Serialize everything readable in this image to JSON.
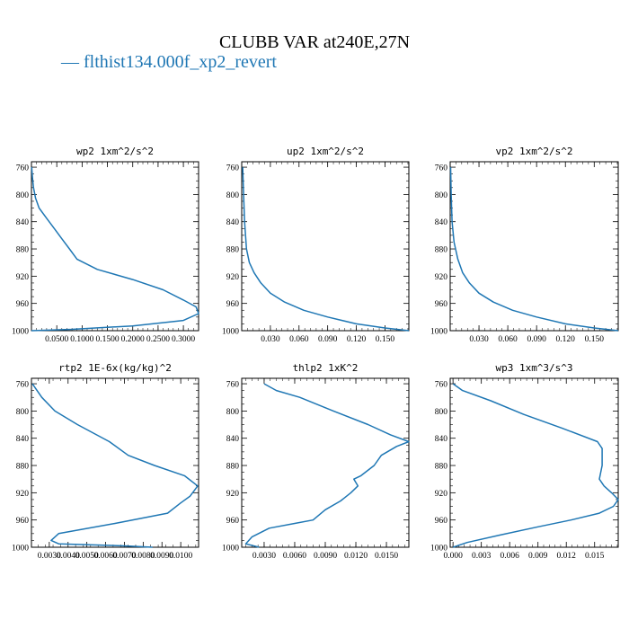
{
  "figure": {
    "title": "CLUBB VAR at240E,27N",
    "legend": {
      "label": "— flthist134.000f_xp2_revert",
      "color": "#1f77b4"
    }
  },
  "chart_data": [
    {
      "type": "line",
      "title": "wp2  1xm^2/s^2",
      "xlim": [
        0,
        0.33
      ],
      "ylim": [
        1000,
        752
      ],
      "xticks": [
        0.05,
        0.1,
        0.15,
        0.2,
        0.25,
        0.3
      ],
      "xtick_labels": [
        "0.0500",
        "0.1000",
        "0.1500",
        "0.2000",
        "0.2500",
        "0.3000"
      ],
      "yticks": [
        760,
        800,
        840,
        880,
        920,
        960,
        1000
      ],
      "ytick_labels": [
        "760",
        "800",
        "840",
        "880",
        "920",
        "960",
        "1000"
      ],
      "series": [
        {
          "points": [
            [
              0.0005,
              760
            ],
            [
              0.002,
              775
            ],
            [
              0.004,
              790
            ],
            [
              0.008,
              805
            ],
            [
              0.015,
              820
            ],
            [
              0.03,
              835
            ],
            [
              0.045,
              850
            ],
            [
              0.06,
              865
            ],
            [
              0.075,
              880
            ],
            [
              0.09,
              895
            ],
            [
              0.13,
              910
            ],
            [
              0.2,
              925
            ],
            [
              0.26,
              940
            ],
            [
              0.3,
              955
            ],
            [
              0.325,
              965
            ],
            [
              0.33,
              975
            ],
            [
              0.3,
              985
            ],
            [
              0.2,
              993
            ],
            [
              0.08,
              998
            ],
            [
              0.0,
              1000
            ]
          ]
        }
      ]
    },
    {
      "type": "line",
      "title": "up2  1xm^2/s^2",
      "xlim": [
        0,
        0.175
      ],
      "ylim": [
        1000,
        752
      ],
      "xticks": [
        0.03,
        0.06,
        0.09,
        0.12,
        0.15
      ],
      "xtick_labels": [
        "0.030",
        "0.060",
        "0.090",
        "0.120",
        "0.150"
      ],
      "yticks": [
        760,
        800,
        840,
        880,
        920,
        960,
        1000
      ],
      "ytick_labels": [
        "760",
        "800",
        "840",
        "880",
        "920",
        "960",
        "1000"
      ],
      "series": [
        {
          "points": [
            [
              0.001,
              760
            ],
            [
              0.002,
              800
            ],
            [
              0.003,
              840
            ],
            [
              0.005,
              880
            ],
            [
              0.008,
              900
            ],
            [
              0.013,
              915
            ],
            [
              0.02,
              930
            ],
            [
              0.03,
              945
            ],
            [
              0.045,
              958
            ],
            [
              0.065,
              970
            ],
            [
              0.09,
              980
            ],
            [
              0.12,
              990
            ],
            [
              0.15,
              996
            ],
            [
              0.175,
              1000
            ]
          ]
        }
      ]
    },
    {
      "type": "line",
      "title": "vp2  1xm^2/s^2",
      "xlim": [
        0,
        0.175
      ],
      "ylim": [
        1000,
        752
      ],
      "xticks": [
        0.03,
        0.06,
        0.09,
        0.12,
        0.15
      ],
      "xtick_labels": [
        "0.030",
        "0.060",
        "0.090",
        "0.120",
        "0.150"
      ],
      "yticks": [
        760,
        800,
        840,
        880,
        920,
        960,
        1000
      ],
      "ytick_labels": [
        "760",
        "800",
        "840",
        "880",
        "920",
        "960",
        "1000"
      ],
      "series": [
        {
          "points": [
            [
              0.0005,
              760
            ],
            [
              0.001,
              800
            ],
            [
              0.002,
              840
            ],
            [
              0.004,
              870
            ],
            [
              0.008,
              895
            ],
            [
              0.013,
              915
            ],
            [
              0.02,
              930
            ],
            [
              0.03,
              945
            ],
            [
              0.045,
              958
            ],
            [
              0.065,
              970
            ],
            [
              0.09,
              980
            ],
            [
              0.12,
              990
            ],
            [
              0.15,
              996
            ],
            [
              0.175,
              1000
            ]
          ]
        }
      ]
    },
    {
      "type": "line",
      "title": "rtp2  1E-6x(kg/kg)^2",
      "xlim": [
        0.00205,
        0.01095
      ],
      "ylim": [
        1000,
        752
      ],
      "xticks": [
        0.004,
        0.006,
        0.008,
        0.01
      ],
      "xtick_labels": [
        "0.0040",
        "0.0060",
        "0.0080",
        "0.0100"
      ],
      "xticks_minor": [
        0.003,
        0.005,
        0.007,
        0.009
      ],
      "xtick_labels_minor": [
        "0.0030",
        "0.0050",
        "0.0070",
        "0.0090"
      ],
      "yticks": [
        760,
        800,
        840,
        880,
        920,
        960,
        1000
      ],
      "ytick_labels": [
        "760",
        "800",
        "840",
        "880",
        "920",
        "960",
        "1000"
      ],
      "series": [
        {
          "points": [
            [
              0.0021,
              760
            ],
            [
              0.0026,
              780
            ],
            [
              0.0033,
              800
            ],
            [
              0.0045,
              820
            ],
            [
              0.0062,
              845
            ],
            [
              0.0072,
              865
            ],
            [
              0.0086,
              880
            ],
            [
              0.0102,
              895
            ],
            [
              0.0109,
              910
            ],
            [
              0.0105,
              925
            ],
            [
              0.01,
              935
            ],
            [
              0.0093,
              950
            ],
            [
              0.0065,
              965
            ],
            [
              0.0035,
              980
            ],
            [
              0.0031,
              990
            ],
            [
              0.0035,
              995
            ],
            [
              0.007,
              998
            ],
            [
              0.0085,
              1000
            ]
          ]
        }
      ]
    },
    {
      "type": "line",
      "title": "thlp2  1xK^2",
      "xlim": [
        0.0008,
        0.0172
      ],
      "ylim": [
        1000,
        752
      ],
      "xticks": [
        0.003,
        0.006,
        0.009,
        0.012,
        0.015
      ],
      "xtick_labels": [
        "0.0030",
        "0.0060",
        "0.0090",
        "0.0120",
        "0.0150"
      ],
      "yticks": [
        760,
        800,
        840,
        880,
        920,
        960,
        1000
      ],
      "ytick_labels": [
        "760",
        "800",
        "840",
        "880",
        "920",
        "960",
        "1000"
      ],
      "series": [
        {
          "points": [
            [
              0.003,
              760
            ],
            [
              0.0042,
              770
            ],
            [
              0.0065,
              780
            ],
            [
              0.0098,
              800
            ],
            [
              0.0132,
              820
            ],
            [
              0.0154,
              835
            ],
            [
              0.0172,
              845
            ],
            [
              0.016,
              852
            ],
            [
              0.0145,
              865
            ],
            [
              0.0138,
              880
            ],
            [
              0.0125,
              895
            ],
            [
              0.0118,
              900
            ],
            [
              0.0122,
              910
            ],
            [
              0.0115,
              920
            ],
            [
              0.0105,
              932
            ],
            [
              0.009,
              945
            ],
            [
              0.0078,
              960
            ],
            [
              0.006,
              965
            ],
            [
              0.0035,
              972
            ],
            [
              0.0018,
              985
            ],
            [
              0.0012,
              995
            ],
            [
              0.0025,
              1000
            ]
          ]
        }
      ]
    },
    {
      "type": "line",
      "title": "wp3  1xm^3/s^3",
      "xlim": [
        -0.0003,
        0.0175
      ],
      "ylim": [
        1000,
        752
      ],
      "xticks": [
        0.0,
        0.003,
        0.006,
        0.009,
        0.012,
        0.015
      ],
      "xtick_labels": [
        "0.000",
        "0.003",
        "0.006",
        "0.009",
        "0.012",
        "0.015"
      ],
      "yticks": [
        760,
        800,
        840,
        880,
        920,
        960,
        1000
      ],
      "ytick_labels": [
        "760",
        "800",
        "840",
        "880",
        "920",
        "960",
        "1000"
      ],
      "series": [
        {
          "points": [
            [
              0.0,
              760
            ],
            [
              0.001,
              770
            ],
            [
              0.004,
              785
            ],
            [
              0.0075,
              805
            ],
            [
              0.0115,
              825
            ],
            [
              0.0153,
              845
            ],
            [
              0.0158,
              855
            ],
            [
              0.0158,
              880
            ],
            [
              0.0155,
              900
            ],
            [
              0.016,
              910
            ],
            [
              0.0168,
              920
            ],
            [
              0.0175,
              930
            ],
            [
              0.017,
              940
            ],
            [
              0.0155,
              950
            ],
            [
              0.0125,
              960
            ],
            [
              0.009,
              970
            ],
            [
              0.005,
              982
            ],
            [
              0.0015,
              993
            ],
            [
              0.0,
              1000
            ]
          ]
        }
      ]
    }
  ]
}
